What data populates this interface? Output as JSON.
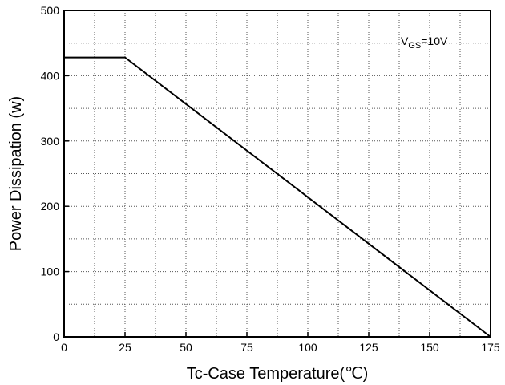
{
  "chart_data": {
    "type": "line",
    "title": "",
    "xlabel": "Tc-Case Temperature(℃)",
    "ylabel": "Power Dissipation (w)",
    "xlim": [
      0,
      175
    ],
    "ylim": [
      0,
      500
    ],
    "xticks": [
      0,
      25,
      50,
      75,
      100,
      125,
      150,
      175
    ],
    "yticks": [
      0,
      100,
      200,
      300,
      400,
      500
    ],
    "xtick_labels": [
      "0",
      "25",
      "50",
      "75",
      "100",
      "125",
      "150",
      "175"
    ],
    "ytick_labels": [
      "0",
      "100",
      "200",
      "300",
      "400",
      "500"
    ],
    "grid": true,
    "grid_style": "dotted",
    "grid_x_step": 12.5,
    "grid_y_step": 50,
    "series": [
      {
        "x": [
          0,
          25,
          175
        ],
        "y": [
          428,
          428,
          0
        ]
      }
    ],
    "annotation": {
      "main": "V",
      "subscript": "GS",
      "rest": "=10V"
    }
  }
}
